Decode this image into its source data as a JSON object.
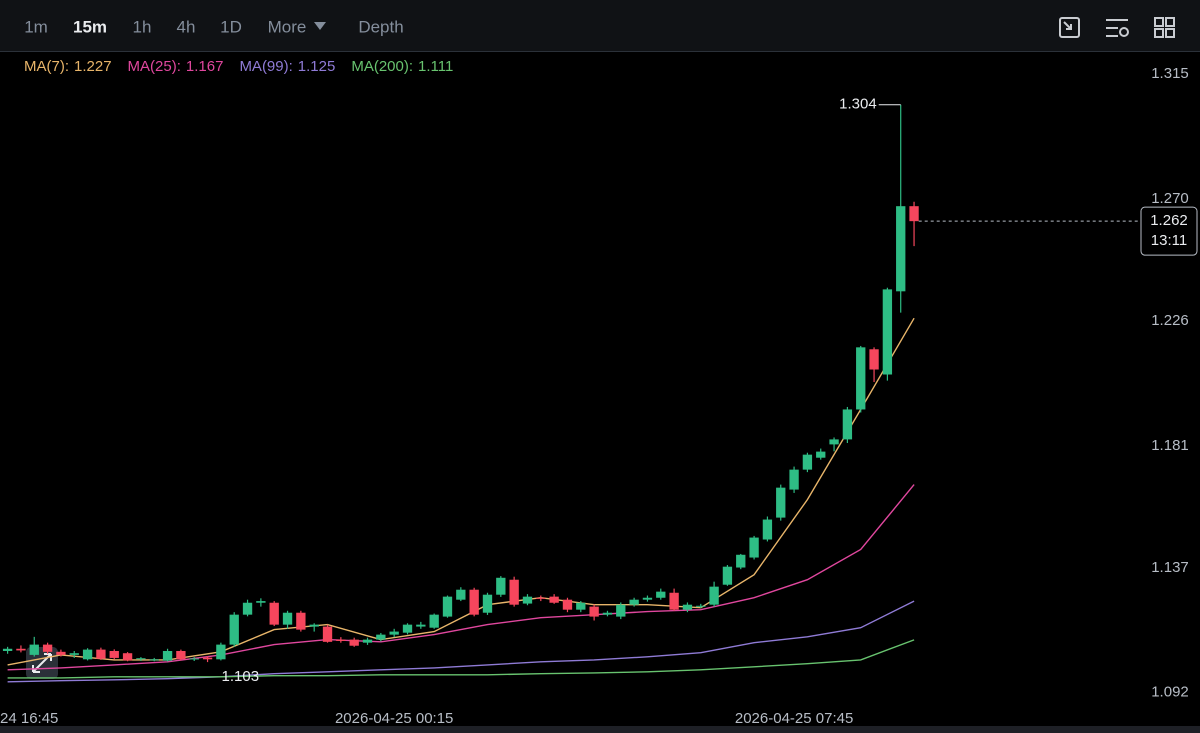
{
  "chart_data": {
    "type": "candlestick",
    "toolbar": {
      "intervals": [
        "1m",
        "15m",
        "1h",
        "4h",
        "1D",
        "More",
        "Depth"
      ],
      "active_index": 1
    },
    "up_color": "#2ebd85",
    "down_color": "#f6465d",
    "xlim": [
      -0.57,
      84.95
    ],
    "ylim": [
      1.085,
      1.323
    ],
    "yticks": [
      1.315,
      {
        "value": 1.27,
        "label": "1.270"
      },
      1.226,
      1.181,
      1.137,
      1.092
    ],
    "xticks": [
      {
        "value": -1,
        "label": "24 16:45"
      },
      {
        "value": 29,
        "label": "2026-04-25 00:15"
      },
      {
        "value": 59,
        "label": "2026-04-25 07:45"
      }
    ],
    "countdown": "13:11",
    "open": [
      1.107,
      1.1078,
      1.1056,
      1.1093,
      1.1067,
      1.1056,
      1.104,
      1.1075,
      1.107,
      1.1062,
      1.104,
      1.1036,
      1.1035,
      1.107,
      1.104,
      1.1046,
      1.104,
      1.1093,
      1.1201,
      1.1244,
      1.1244,
      1.1165,
      1.1208,
      1.1158,
      1.1158,
      1.1111,
      1.1111,
      1.11,
      1.1111,
      1.1129,
      1.1136,
      1.1158,
      1.1154,
      1.1194,
      1.1255,
      1.1291,
      1.1208,
      1.1273,
      1.1327,
      1.1241,
      1.1262,
      1.1266,
      1.1255,
      1.1219,
      1.123,
      1.1201,
      1.1194,
      1.1237,
      1.1255,
      1.1262,
      1.128,
      1.1219,
      1.123,
      1.1237,
      1.1309,
      1.1371,
      1.1407,
      1.1472,
      1.1551,
      1.1652,
      1.1724,
      1.1767,
      1.1815,
      1.1833,
      1.1941,
      1.2158,
      1.2067,
      1.2367,
      1.2674
    ],
    "high": [
      1.1085,
      1.109,
      1.1121,
      1.11,
      1.1075,
      1.107,
      1.108,
      1.1082,
      1.1076,
      1.1066,
      1.1048,
      1.1045,
      1.1078,
      1.1075,
      1.1048,
      1.1052,
      1.11,
      1.121,
      1.1255,
      1.126,
      1.125,
      1.1215,
      1.1215,
      1.117,
      1.1165,
      1.112,
      1.1118,
      1.1118,
      1.1135,
      1.115,
      1.117,
      1.1175,
      1.1205,
      1.127,
      1.13,
      1.1298,
      1.128,
      1.134,
      1.1338,
      1.1275,
      1.127,
      1.1275,
      1.1262,
      1.125,
      1.1238,
      1.1215,
      1.1245,
      1.1262,
      1.127,
      1.1295,
      1.1295,
      1.1245,
      1.124,
      1.132,
      1.138,
      1.142,
      1.1485,
      1.1555,
      1.167,
      1.1735,
      1.1785,
      1.18,
      1.184,
      1.195,
      1.217,
      1.2165,
      1.238,
      1.304,
      1.269
    ],
    "low": [
      1.106,
      1.1065,
      1.105,
      1.106,
      1.105,
      1.1045,
      1.1036,
      1.1038,
      1.104,
      1.1033,
      1.1034,
      1.1033,
      1.1032,
      1.1036,
      1.1034,
      1.103,
      1.1036,
      1.1085,
      1.1195,
      1.123,
      1.116,
      1.115,
      1.114,
      1.114,
      1.11,
      1.11,
      1.1085,
      1.1092,
      1.1105,
      1.112,
      1.113,
      1.115,
      1.115,
      1.119,
      1.125,
      1.1195,
      1.12,
      1.1265,
      1.123,
      1.1235,
      1.125,
      1.124,
      1.121,
      1.121,
      1.118,
      1.1195,
      1.1185,
      1.123,
      1.1248,
      1.1255,
      1.1215,
      1.121,
      1.1225,
      1.123,
      1.1305,
      1.1365,
      1.14,
      1.1465,
      1.154,
      1.164,
      1.1715,
      1.176,
      1.179,
      1.182,
      1.193,
      1.204,
      1.2045,
      1.229,
      1.253
    ],
    "close": [
      1.1078,
      1.1072,
      1.1093,
      1.1067,
      1.1056,
      1.1062,
      1.1075,
      1.1042,
      1.1045,
      1.1036,
      1.1044,
      1.104,
      1.107,
      1.104,
      1.1043,
      1.104,
      1.1093,
      1.1201,
      1.1244,
      1.125,
      1.1165,
      1.1208,
      1.1147,
      1.1165,
      1.1103,
      1.1106,
      1.1089,
      1.1111,
      1.1129,
      1.114,
      1.1165,
      1.1165,
      1.1201,
      1.1266,
      1.1291,
      1.1201,
      1.1273,
      1.1334,
      1.1237,
      1.1266,
      1.1258,
      1.1244,
      1.1219,
      1.1244,
      1.1194,
      1.1208,
      1.1237,
      1.1255,
      1.1262,
      1.1284,
      1.1219,
      1.1237,
      1.1233,
      1.1302,
      1.1374,
      1.1417,
      1.1479,
      1.1544,
      1.1659,
      1.1724,
      1.1778,
      1.1789,
      1.1833,
      1.1941,
      1.2165,
      1.2085,
      1.2374,
      1.2674,
      1.262
    ],
    "ma_x": [
      0,
      4,
      8,
      12,
      16,
      20,
      24,
      28,
      32,
      36,
      40,
      44,
      48,
      52,
      56,
      60,
      64,
      68
    ],
    "series": [
      {
        "name": "MA(7):",
        "color": "#e8b56a",
        "values": [
          1.102,
          1.1056,
          1.1038,
          1.1038,
          1.1067,
          1.1147,
          1.1165,
          1.1111,
          1.114,
          1.1237,
          1.1262,
          1.1237,
          1.1237,
          1.1226,
          1.1345,
          1.1616,
          1.1941,
          1.227
        ]
      },
      {
        "name": "MA(25):",
        "color": "#e0479e",
        "values": [
          1.1002,
          1.1009,
          1.102,
          1.1031,
          1.1056,
          1.1093,
          1.1111,
          1.1103,
          1.1129,
          1.1165,
          1.119,
          1.1201,
          1.1212,
          1.1219,
          1.1262,
          1.1327,
          1.1436,
          1.167
        ]
      },
      {
        "name": "MA(99):",
        "color": "#8f7bd6",
        "values": [
          1.0959,
          1.0963,
          1.0966,
          1.097,
          1.0977,
          1.0988,
          1.0995,
          1.1002,
          1.1009,
          1.102,
          1.1031,
          1.1038,
          1.1049,
          1.1064,
          1.11,
          1.1121,
          1.1154,
          1.125
        ]
      },
      {
        "name": "MA(200):",
        "color": "#68c36f",
        "values": [
          1.0973,
          1.0973,
          1.0977,
          1.0977,
          1.0977,
          1.0981,
          1.0981,
          1.0984,
          1.0984,
          1.0984,
          1.0988,
          1.0991,
          1.0995,
          1.1002,
          1.1013,
          1.1024,
          1.1038,
          1.111
        ]
      }
    ]
  }
}
